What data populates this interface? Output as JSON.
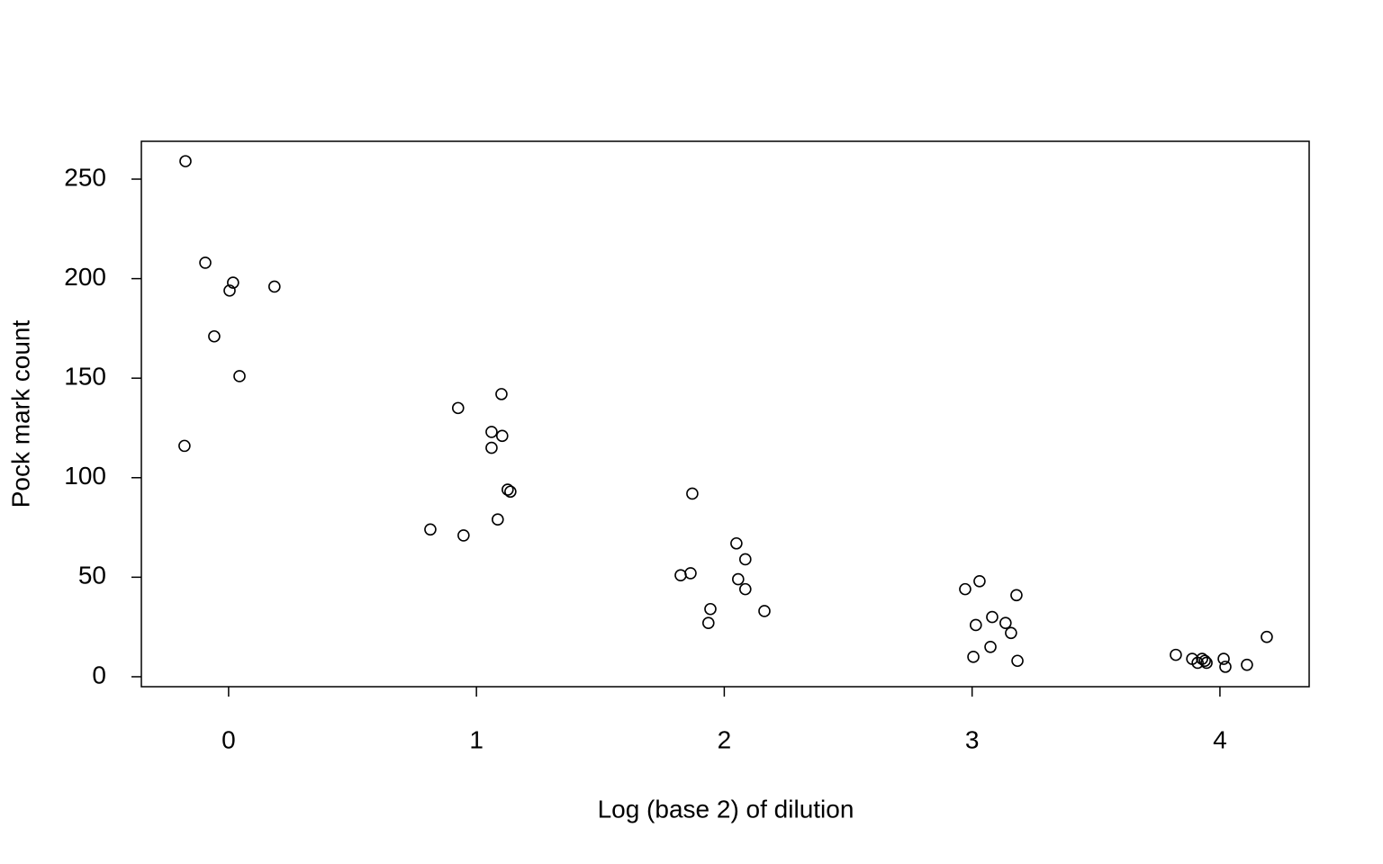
{
  "chart_data": {
    "type": "scatter",
    "x_label": "Log (base 2) of dilution",
    "y_label": "Pock mark count",
    "color": "#000000",
    "x": [
      -0.174,
      -0.094,
      0.018,
      0.004,
      0.185,
      -0.058,
      0.044,
      -0.178,
      1.101,
      0.926,
      1.061,
      1.104,
      1.061,
      1.126,
      1.137,
      1.086,
      0.814,
      0.948,
      1.871,
      2.049,
      2.085,
      1.824,
      1.864,
      2.056,
      2.085,
      1.944,
      2.162,
      1.936,
      3.03,
      2.972,
      3.179,
      3.081,
      3.015,
      3.135,
      3.157,
      3.074,
      3.005,
      3.183,
      3.822,
      3.888,
      3.91,
      3.928,
      3.946,
      3.939,
      4.015,
      4.022,
      4.109,
      4.189
    ],
    "values": [
      259,
      208,
      198,
      194,
      196,
      171,
      151,
      116,
      142,
      135,
      123,
      121,
      115,
      94,
      93,
      79,
      74,
      71,
      92,
      67,
      59,
      51,
      52,
      49,
      44,
      34,
      33,
      27,
      48,
      44,
      41,
      30,
      26,
      27,
      22,
      15,
      10,
      8,
      11,
      9,
      7,
      9,
      7,
      8,
      9,
      5,
      6,
      20
    ],
    "xlim": [
      -0.352,
      4.36
    ],
    "xticks": [
      0,
      1,
      2,
      3,
      4
    ],
    "ylim": [
      -5,
      269
    ],
    "yticks": [
      0,
      50,
      100,
      150,
      200,
      250
    ]
  }
}
